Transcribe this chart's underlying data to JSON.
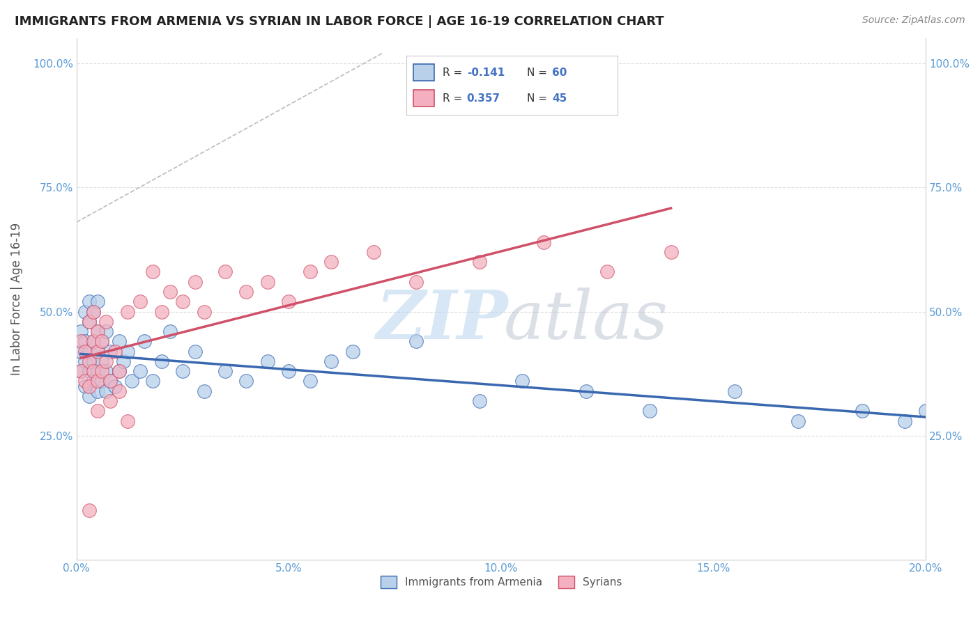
{
  "title": "IMMIGRANTS FROM ARMENIA VS SYRIAN IN LABOR FORCE | AGE 16-19 CORRELATION CHART",
  "source": "Source: ZipAtlas.com",
  "ylabel": "In Labor Force | Age 16-19",
  "xlim": [
    0.0,
    0.2
  ],
  "ylim": [
    0.0,
    1.05
  ],
  "xticks": [
    0.0,
    0.05,
    0.1,
    0.15,
    0.2
  ],
  "xticklabels": [
    "0.0%",
    "5.0%",
    "10.0%",
    "15.0%",
    "20.0%"
  ],
  "yticks": [
    0.25,
    0.5,
    0.75,
    1.0
  ],
  "yticklabels": [
    "25.0%",
    "50.0%",
    "75.0%",
    "100.0%"
  ],
  "armenia_color": "#b8d0ea",
  "syria_color": "#f4b0c0",
  "armenia_line_color": "#3a68b0",
  "syria_line_color": "#d05068",
  "ref_line_color": "#cccccc",
  "background_color": "#ffffff",
  "armenia_x": [
    0.001,
    0.001,
    0.001,
    0.002,
    0.002,
    0.002,
    0.002,
    0.003,
    0.003,
    0.003,
    0.003,
    0.003,
    0.004,
    0.004,
    0.004,
    0.004,
    0.005,
    0.005,
    0.005,
    0.005,
    0.005,
    0.006,
    0.006,
    0.006,
    0.007,
    0.007,
    0.007,
    0.008,
    0.008,
    0.009,
    0.01,
    0.01,
    0.011,
    0.012,
    0.013,
    0.015,
    0.016,
    0.018,
    0.02,
    0.022,
    0.025,
    0.028,
    0.03,
    0.035,
    0.04,
    0.045,
    0.05,
    0.055,
    0.06,
    0.065,
    0.08,
    0.095,
    0.105,
    0.12,
    0.135,
    0.155,
    0.17,
    0.185,
    0.195,
    0.2
  ],
  "armenia_y": [
    0.38,
    0.42,
    0.46,
    0.35,
    0.4,
    0.44,
    0.5,
    0.33,
    0.38,
    0.42,
    0.48,
    0.52,
    0.36,
    0.4,
    0.44,
    0.5,
    0.34,
    0.38,
    0.42,
    0.46,
    0.52,
    0.36,
    0.4,
    0.44,
    0.34,
    0.38,
    0.46,
    0.36,
    0.42,
    0.35,
    0.38,
    0.44,
    0.4,
    0.42,
    0.36,
    0.38,
    0.44,
    0.36,
    0.4,
    0.46,
    0.38,
    0.42,
    0.34,
    0.38,
    0.36,
    0.4,
    0.38,
    0.36,
    0.4,
    0.42,
    0.44,
    0.32,
    0.36,
    0.34,
    0.3,
    0.34,
    0.28,
    0.3,
    0.28,
    0.3
  ],
  "syria_x": [
    0.001,
    0.001,
    0.002,
    0.002,
    0.003,
    0.003,
    0.003,
    0.004,
    0.004,
    0.004,
    0.005,
    0.005,
    0.005,
    0.006,
    0.006,
    0.007,
    0.007,
    0.008,
    0.009,
    0.01,
    0.012,
    0.015,
    0.018,
    0.02,
    0.022,
    0.025,
    0.028,
    0.03,
    0.035,
    0.04,
    0.045,
    0.05,
    0.055,
    0.06,
    0.07,
    0.08,
    0.095,
    0.11,
    0.125,
    0.14,
    0.003,
    0.005,
    0.008,
    0.01,
    0.012
  ],
  "syria_y": [
    0.38,
    0.44,
    0.36,
    0.42,
    0.35,
    0.4,
    0.48,
    0.38,
    0.44,
    0.5,
    0.36,
    0.42,
    0.46,
    0.38,
    0.44,
    0.4,
    0.48,
    0.36,
    0.42,
    0.38,
    0.5,
    0.52,
    0.58,
    0.5,
    0.54,
    0.52,
    0.56,
    0.5,
    0.58,
    0.54,
    0.56,
    0.52,
    0.58,
    0.6,
    0.62,
    0.56,
    0.6,
    0.64,
    0.58,
    0.62,
    0.1,
    0.3,
    0.32,
    0.34,
    0.28
  ]
}
